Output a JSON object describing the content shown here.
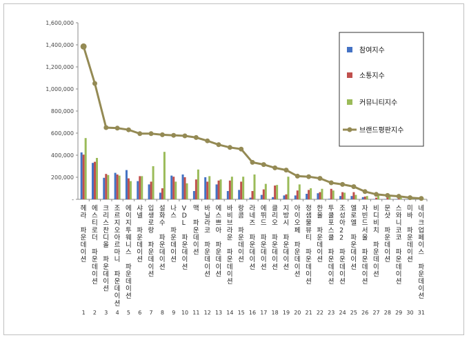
{
  "chart_data": {
    "type": "bar",
    "title": "",
    "xlabel": "",
    "ylabel": "",
    "ylim": [
      0,
      1600000
    ],
    "yticks": [
      "-",
      "200,000",
      "400,000",
      "600,000",
      "800,000",
      "1,000,000",
      "1,200,000",
      "1,400,000",
      "1,600,000"
    ],
    "grid": false,
    "legend_position": "right",
    "indices": [
      "1",
      "2",
      "3",
      "4",
      "5",
      "6",
      "7",
      "8",
      "9",
      "10",
      "11",
      "12",
      "13",
      "14",
      "15",
      "16",
      "17",
      "18",
      "19",
      "20",
      "21",
      "22",
      "23",
      "24",
      "25",
      "26",
      "27",
      "28",
      "29",
      "30",
      "31"
    ],
    "categories": [
      "헤라 파운데이션",
      "에스티로더 파운데이션",
      "크리스찬디올 파운데이션",
      "조르지오아르마니 파운데이션",
      "에이지투웨니스 파운데이션",
      "샤넬 파운데이션",
      "입생로랑 파운데이션",
      "설화수 파운데이션",
      "나스 파운데이션",
      "VDL 파운데이션",
      "맥 파운데이션",
      "바닐라코 파운데이션",
      "에스쁘아 파운데이션",
      "바비브라운 파운데이션",
      "랑콤 파운데이션",
      "라네즈 파운데이션",
      "에뛰드 파운데이션",
      "클리오 파운데이션",
      "지방시 파운데이션",
      "아이오페 파운데이션",
      "정샘물뷰티 파운데이션",
      "한율 파운데이션",
      "투쿨포스쿨 파운데이션",
      "조성아22 파운데이션",
      "엘로엘 파운데이션",
      "자빈드서울 파운데이션",
      "비디비치 파운데이션",
      "문샷 파운데이션",
      "스와니코코 파운데이션",
      "미바 파운데이션",
      "네이크업페이스 파운데이션"
    ],
    "series": [
      {
        "name": "참여지수",
        "color": "#4472c4",
        "values": [
          425000,
          330000,
          195000,
          240000,
          265000,
          165000,
          135000,
          60000,
          215000,
          225000,
          75000,
          200000,
          135000,
          75000,
          85000,
          15000,
          40000,
          20000,
          35000,
          35000,
          50000,
          55000,
          5000,
          30000,
          30000,
          20000,
          3000,
          3000,
          2000,
          1000,
          1000
        ]
      },
      {
        "name": "소통지수",
        "color": "#c0504d",
        "values": [
          405000,
          340000,
          230000,
          225000,
          190000,
          210000,
          160000,
          100000,
          205000,
          200000,
          180000,
          160000,
          170000,
          170000,
          160000,
          75000,
          90000,
          125000,
          45000,
          80000,
          85000,
          65000,
          95000,
          65000,
          65000,
          25000,
          15000,
          15000,
          8000,
          3000,
          2000
        ]
      },
      {
        "name": "커뮤니티지수",
        "color": "#9bbb59",
        "values": [
          555000,
          375000,
          220000,
          215000,
          165000,
          210000,
          300000,
          430000,
          160000,
          145000,
          270000,
          210000,
          180000,
          205000,
          205000,
          225000,
          140000,
          130000,
          205000,
          135000,
          100000,
          95000,
          80000,
          60000,
          40000,
          30000,
          35000,
          35000,
          20000,
          10000,
          5000
        ]
      },
      {
        "name": "브랜드평판지수",
        "color": "#948a54",
        "values": [
          1385000,
          1050000,
          650000,
          645000,
          630000,
          595000,
          595000,
          585000,
          580000,
          575000,
          560000,
          530000,
          495000,
          470000,
          455000,
          335000,
          315000,
          285000,
          265000,
          210000,
          205000,
          190000,
          150000,
          135000,
          115000,
          70000,
          45000,
          35000,
          27000,
          15000,
          8000
        ]
      }
    ]
  }
}
